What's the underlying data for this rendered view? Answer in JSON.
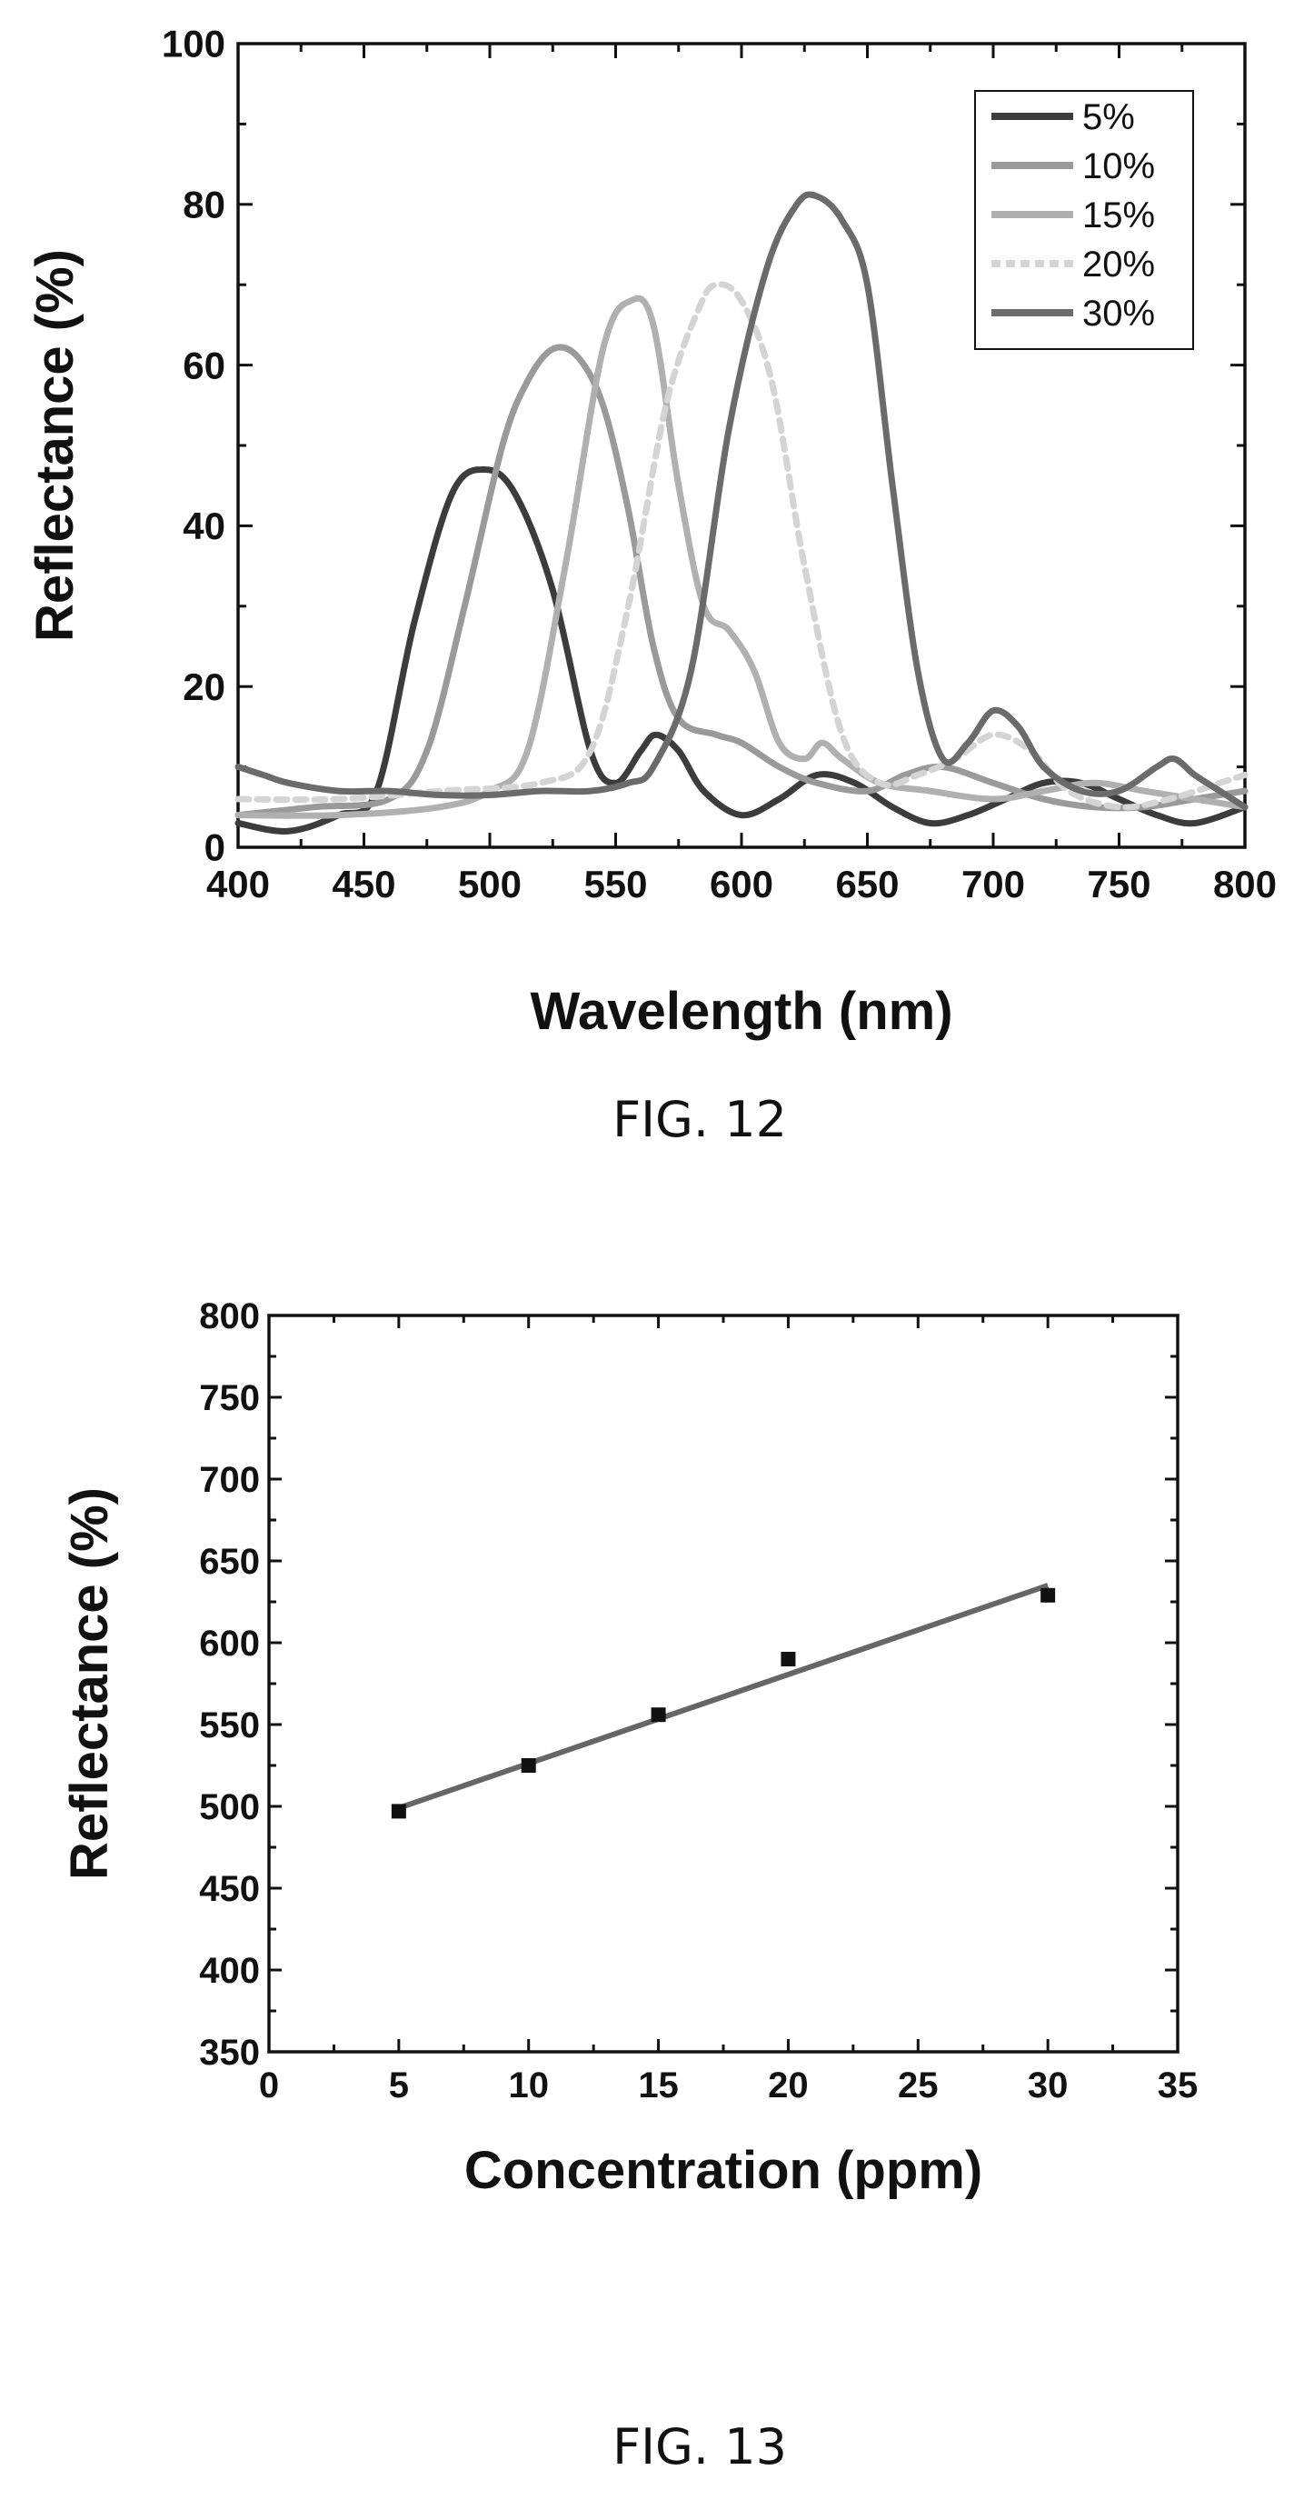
{
  "chart_data": [
    {
      "type": "line",
      "xlabel": "Wavelength (nm)",
      "ylabel": "Reflectance (%)",
      "xlim": [
        400,
        800
      ],
      "ylim": [
        0,
        100
      ],
      "x_ticks": [
        400,
        450,
        500,
        550,
        600,
        650,
        700,
        750,
        800
      ],
      "y_ticks": [
        0,
        20,
        40,
        60,
        80,
        100
      ],
      "grid": false,
      "legend": "top-right",
      "caption": "FIG. 12",
      "series": [
        {
          "name": "5%",
          "color": "#3c3c3c",
          "dash": "",
          "points": [
            [
              400,
              3
            ],
            [
              420,
              2
            ],
            [
              440,
              4
            ],
            [
              455,
              7
            ],
            [
              470,
              28
            ],
            [
              485,
              44
            ],
            [
              498,
              47
            ],
            [
              510,
              44
            ],
            [
              525,
              32
            ],
            [
              540,
              12
            ],
            [
              550,
              8
            ],
            [
              560,
              12
            ],
            [
              566,
              14
            ],
            [
              575,
              12
            ],
            [
              585,
              7
            ],
            [
              600,
              4
            ],
            [
              615,
              6
            ],
            [
              630,
              9
            ],
            [
              645,
              8
            ],
            [
              660,
              5
            ],
            [
              675,
              3
            ],
            [
              690,
              4
            ],
            [
              705,
              6
            ],
            [
              720,
              8
            ],
            [
              735,
              8
            ],
            [
              750,
              6
            ],
            [
              765,
              4
            ],
            [
              780,
              3
            ],
            [
              800,
              5
            ]
          ]
        },
        {
          "name": "10%",
          "color": "#9a9a9a",
          "dash": "",
          "points": [
            [
              400,
              4
            ],
            [
              430,
              5
            ],
            [
              460,
              6
            ],
            [
              475,
              12
            ],
            [
              490,
              30
            ],
            [
              505,
              50
            ],
            [
              515,
              58
            ],
            [
              525,
              62
            ],
            [
              535,
              61
            ],
            [
              545,
              55
            ],
            [
              555,
              42
            ],
            [
              565,
              25
            ],
            [
              575,
              16
            ],
            [
              590,
              14
            ],
            [
              600,
              13
            ],
            [
              615,
              10
            ],
            [
              630,
              8
            ],
            [
              650,
              7
            ],
            [
              665,
              9
            ],
            [
              680,
              10
            ],
            [
              700,
              8
            ],
            [
              720,
              6
            ],
            [
              740,
              5
            ],
            [
              760,
              5
            ],
            [
              780,
              6
            ],
            [
              800,
              7
            ]
          ]
        },
        {
          "name": "15%",
          "color": "#b0b0b0",
          "dash": "",
          "points": [
            [
              400,
              4
            ],
            [
              440,
              4
            ],
            [
              480,
              5
            ],
            [
              500,
              7
            ],
            [
              515,
              12
            ],
            [
              530,
              35
            ],
            [
              545,
              62
            ],
            [
              556,
              68
            ],
            [
              565,
              65
            ],
            [
              575,
              45
            ],
            [
              585,
              30
            ],
            [
              595,
              27
            ],
            [
              605,
              22
            ],
            [
              615,
              13
            ],
            [
              625,
              11
            ],
            [
              632,
              13
            ],
            [
              640,
              11
            ],
            [
              655,
              8
            ],
            [
              675,
              7
            ],
            [
              700,
              6
            ],
            [
              720,
              7
            ],
            [
              740,
              8
            ],
            [
              760,
              7
            ],
            [
              780,
              6
            ],
            [
              800,
              5
            ]
          ]
        },
        {
          "name": "20%",
          "color": "#d4d4d4",
          "dash": "4 3",
          "points": [
            [
              400,
              6
            ],
            [
              440,
              6
            ],
            [
              480,
              7
            ],
            [
              520,
              8
            ],
            [
              540,
              12
            ],
            [
              555,
              30
            ],
            [
              570,
              55
            ],
            [
              583,
              67
            ],
            [
              590,
              70
            ],
            [
              600,
              68
            ],
            [
              612,
              58
            ],
            [
              625,
              35
            ],
            [
              640,
              14
            ],
            [
              655,
              8
            ],
            [
              670,
              9
            ],
            [
              685,
              11
            ],
            [
              700,
              14
            ],
            [
              715,
              12
            ],
            [
              730,
              7
            ],
            [
              750,
              5
            ],
            [
              770,
              6
            ],
            [
              790,
              8
            ],
            [
              800,
              9
            ]
          ]
        },
        {
          "name": "30%",
          "color": "#6b6b6b",
          "dash": "",
          "points": [
            [
              400,
              10
            ],
            [
              410,
              9
            ],
            [
              420,
              8
            ],
            [
              440,
              7
            ],
            [
              460,
              7
            ],
            [
              480,
              6.5
            ],
            [
              500,
              6.5
            ],
            [
              520,
              7
            ],
            [
              540,
              7
            ],
            [
              555,
              8
            ],
            [
              565,
              10
            ],
            [
              580,
              22
            ],
            [
              595,
              52
            ],
            [
              610,
              72
            ],
            [
              622,
              80
            ],
            [
              630,
              81
            ],
            [
              640,
              78
            ],
            [
              650,
              70
            ],
            [
              660,
              45
            ],
            [
              670,
              22
            ],
            [
              680,
              11
            ],
            [
              690,
              13
            ],
            [
              700,
              17
            ],
            [
              710,
              15
            ],
            [
              720,
              10
            ],
            [
              735,
              7
            ],
            [
              750,
              7
            ],
            [
              765,
              10
            ],
            [
              772,
              11
            ],
            [
              780,
              9
            ],
            [
              790,
              7
            ],
            [
              800,
              5
            ]
          ]
        }
      ]
    },
    {
      "type": "scatter",
      "xlabel": "Concentration (ppm)",
      "ylabel": "Reflectance (%)",
      "xlim": [
        0,
        35
      ],
      "ylim": [
        350,
        800
      ],
      "x_ticks": [
        0,
        5,
        10,
        15,
        20,
        25,
        30,
        35
      ],
      "y_ticks": [
        350,
        400,
        450,
        500,
        550,
        600,
        650,
        700,
        750,
        800
      ],
      "grid": false,
      "caption": "FIG. 13",
      "points": [
        [
          5,
          497
        ],
        [
          10,
          525
        ],
        [
          15,
          556
        ],
        [
          20,
          590
        ],
        [
          30,
          629
        ]
      ],
      "fit_line": [
        [
          5,
          499
        ],
        [
          30,
          635
        ]
      ]
    }
  ],
  "colors": {
    "axis": "#111111",
    "marker": "#111111",
    "fit": "#666666"
  }
}
